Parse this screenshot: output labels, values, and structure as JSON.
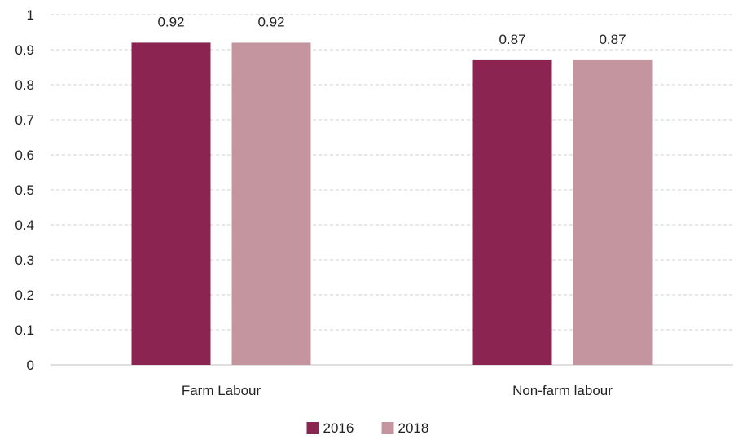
{
  "chart_data": {
    "type": "bar",
    "title": "",
    "xlabel": "",
    "ylabel": "",
    "categories": [
      "Farm Labour",
      "Non-farm labour"
    ],
    "series": [
      {
        "name": "2016",
        "values": [
          0.92,
          0.87
        ],
        "color": "#8c2452"
      },
      {
        "name": "2018",
        "values": [
          0.92,
          0.87
        ],
        "color": "#c4959f"
      }
    ],
    "data_labels": [
      [
        "0.92",
        "0.87"
      ],
      [
        "0.92",
        "0.87"
      ]
    ],
    "ylim": [
      0,
      1
    ],
    "yticks": [
      0,
      0.1,
      0.2,
      0.3,
      0.4,
      0.5,
      0.6,
      0.7,
      0.8,
      0.9,
      1
    ],
    "ytick_labels": [
      "0",
      "0.1",
      "0.2",
      "0.3",
      "0.4",
      "0.5",
      "0.6",
      "0.7",
      "0.8",
      "0.9",
      "1"
    ],
    "grid": true,
    "grid_color": "#d0d0d0",
    "legend_position": "bottom-center"
  }
}
